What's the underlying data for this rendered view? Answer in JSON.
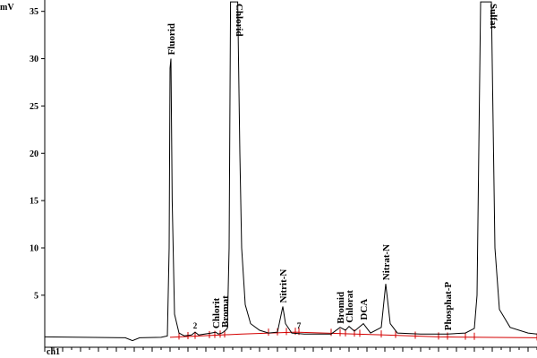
{
  "chart_data": {
    "type": "line",
    "ylabel": "mV",
    "xlabel": "",
    "channel_label": "ch1",
    "ylim": [
      -0.5,
      36.2
    ],
    "xlim": [
      0,
      27.5
    ],
    "yticks": [
      5,
      10,
      15,
      20,
      25,
      30,
      35
    ],
    "x_minor_step": 0.5,
    "baseline": 0.6,
    "colors": {
      "trace": "#000000",
      "integration": "#d40000",
      "axis": "#000000"
    },
    "series": [
      {
        "values": [
          [
            0,
            0.6
          ],
          [
            4.5,
            0.5
          ],
          [
            4.9,
            0.2
          ],
          [
            5.3,
            0.5
          ],
          [
            6.5,
            0.55
          ],
          [
            6.85,
            0.7
          ],
          [
            6.95,
            10
          ],
          [
            7.0,
            29
          ],
          [
            7.05,
            30
          ],
          [
            7.12,
            15
          ],
          [
            7.25,
            3.0
          ],
          [
            7.5,
            1.0
          ],
          [
            7.8,
            0.7
          ],
          [
            8.2,
            0.8
          ],
          [
            8.4,
            1.1
          ],
          [
            8.6,
            0.8
          ],
          [
            9.3,
            1.0
          ],
          [
            9.55,
            1.1
          ],
          [
            9.7,
            0.9
          ],
          [
            9.9,
            1.0
          ],
          [
            10.05,
            1.2
          ],
          [
            10.2,
            1.5
          ],
          [
            10.3,
            10
          ],
          [
            10.38,
            36
          ],
          [
            10.5,
            36
          ],
          [
            10.65,
            36
          ],
          [
            10.78,
            36
          ],
          [
            10.9,
            20
          ],
          [
            11.0,
            10
          ],
          [
            11.2,
            4
          ],
          [
            11.5,
            2
          ],
          [
            12.0,
            1.3
          ],
          [
            12.5,
            1.0
          ],
          [
            13.0,
            1.1
          ],
          [
            13.3,
            3.8
          ],
          [
            13.45,
            2.0
          ],
          [
            13.8,
            1.0
          ],
          [
            14.5,
            0.9
          ],
          [
            16.0,
            0.9
          ],
          [
            16.5,
            1.6
          ],
          [
            16.8,
            1.3
          ],
          [
            17.0,
            1.7
          ],
          [
            17.3,
            1.2
          ],
          [
            17.8,
            2.0
          ],
          [
            18.2,
            1.0
          ],
          [
            18.8,
            1.6
          ],
          [
            19.05,
            6.2
          ],
          [
            19.3,
            2.0
          ],
          [
            19.7,
            1.0
          ],
          [
            21.0,
            0.9
          ],
          [
            22.5,
            0.9
          ],
          [
            23.5,
            1.0
          ],
          [
            24.0,
            1.5
          ],
          [
            24.15,
            5
          ],
          [
            24.35,
            36
          ],
          [
            24.7,
            36
          ],
          [
            24.95,
            36
          ],
          [
            25.15,
            10
          ],
          [
            25.4,
            3.5
          ],
          [
            26.0,
            1.6
          ],
          [
            27.0,
            1.0
          ],
          [
            27.5,
            0.9
          ]
        ]
      }
    ],
    "integration_baseline": [
      [
        7.0,
        0.55
      ],
      [
        11.0,
        0.9
      ],
      [
        14.0,
        1.1
      ],
      [
        19.0,
        0.8
      ],
      [
        22.0,
        0.6
      ],
      [
        27.5,
        0.5
      ]
    ],
    "peak_markers_x": [
      7.5,
      8.0,
      8.4,
      9.2,
      9.5,
      9.8,
      10.05,
      12.5,
      13.0,
      13.5,
      14.0,
      14.2,
      16.0,
      16.5,
      16.8,
      17.3,
      17.6,
      18.8,
      19.6,
      20.7,
      22.0,
      22.5,
      23.5,
      24.0,
      27.5
    ],
    "peaks": [
      {
        "label": "Fluorid",
        "x": 7.05,
        "y": 30
      },
      {
        "label": "2",
        "x": 8.4,
        "y": 1.1
      },
      {
        "label": "Chlorit",
        "x": 9.55,
        "y": 1.1
      },
      {
        "label": "Bromat",
        "x": 10.05,
        "y": 1.2
      },
      {
        "label": "Chlorid",
        "x": 10.5,
        "y": 36
      },
      {
        "label": "Nitrit-N",
        "x": 13.3,
        "y": 3.8
      },
      {
        "label": "7",
        "x": 14.2,
        "y": 1.1
      },
      {
        "label": "Bromid",
        "x": 16.5,
        "y": 1.6
      },
      {
        "label": "Chlorat",
        "x": 17.0,
        "y": 1.7
      },
      {
        "label": "DCA",
        "x": 17.8,
        "y": 2.0
      },
      {
        "label": "Nitrat-N",
        "x": 19.05,
        "y": 6.2
      },
      {
        "label": "Phosphat-P",
        "x": 22.5,
        "y": 0.9
      },
      {
        "label": "Sulfat",
        "x": 24.7,
        "y": 36
      }
    ]
  }
}
